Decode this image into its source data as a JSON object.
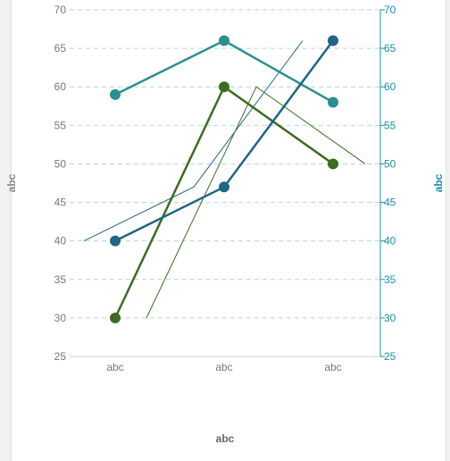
{
  "chart_data": {
    "type": "line",
    "categories": [
      "abc",
      "abc",
      "abc"
    ],
    "xlabel": "abc",
    "ylabel": "abc",
    "y2label": "abc",
    "ylim": [
      25,
      70
    ],
    "y2lim": [
      25,
      70
    ],
    "yticks": [
      25,
      30,
      35,
      40,
      45,
      50,
      55,
      60,
      65,
      70
    ],
    "grid": "horizontal dashed",
    "series": [
      {
        "values": [
          59,
          66,
          58
        ],
        "color": "#2a8f8f",
        "style": "thick-markers"
      },
      {
        "values": [
          30,
          60,
          50
        ],
        "color": "#3d6b22",
        "style": "thick-markers"
      },
      {
        "values": [
          40,
          47,
          66
        ],
        "color": "#1f6585",
        "style": "thick-markers"
      },
      {
        "values": [
          40,
          47,
          66
        ],
        "color": "#1f6585",
        "style": "thin-offset"
      },
      {
        "values": [
          30,
          60,
          50
        ],
        "color": "#3d6b22",
        "style": "thin-offset"
      }
    ]
  }
}
